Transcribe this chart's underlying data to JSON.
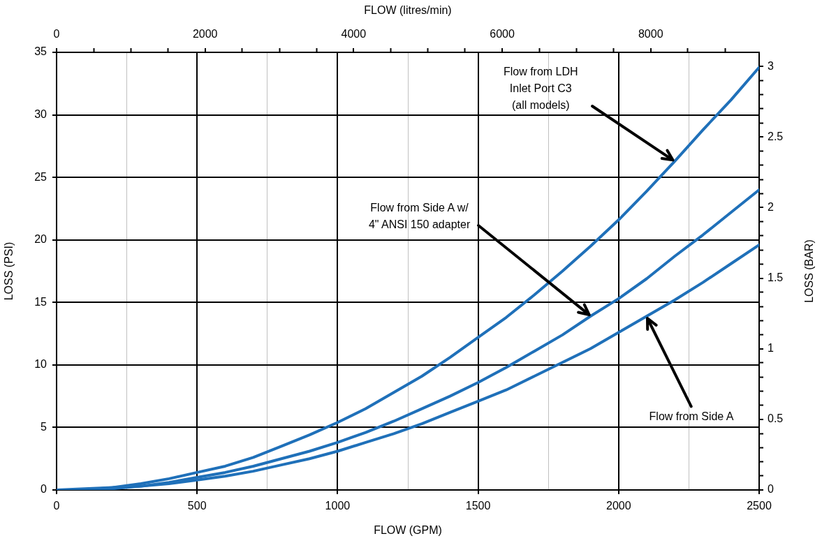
{
  "chart_data": {
    "type": "line",
    "xlabel": "FLOW (GPM)",
    "ylabel": "LOSS (PSI)",
    "y2label": "LOSS (BAR)",
    "x2label": "FLOW (litres/min)",
    "x": [
      0,
      100,
      200,
      300,
      400,
      500,
      600,
      700,
      800,
      900,
      1000,
      1100,
      1200,
      1300,
      1400,
      1500,
      1600,
      1700,
      1800,
      1900,
      2000,
      2100,
      2200,
      2300,
      2400,
      2500
    ],
    "series": [
      {
        "color": "#1f70b9",
        "values": [
          0,
          0.1,
          0.2,
          0.5,
          0.9,
          1.4,
          1.9,
          2.6,
          3.5,
          4.4,
          5.4,
          6.5,
          7.8,
          9.1,
          10.6,
          12.2,
          13.8,
          15.6,
          17.5,
          19.5,
          21.6,
          23.9,
          26.3,
          28.8,
          31.2,
          33.8
        ]
      },
      {
        "color": "#1f70b9",
        "values": [
          0,
          0.0,
          0.2,
          0.3,
          0.6,
          1.0,
          1.4,
          1.9,
          2.5,
          3.1,
          3.8,
          4.6,
          5.5,
          6.5,
          7.5,
          8.6,
          9.8,
          11.1,
          12.4,
          13.9,
          15.3,
          16.9,
          18.7,
          20.4,
          22.2,
          24.0
        ]
      },
      {
        "color": "#1f70b9",
        "values": [
          0,
          0.0,
          0.1,
          0.3,
          0.5,
          0.8,
          1.1,
          1.5,
          2.0,
          2.5,
          3.1,
          3.8,
          4.5,
          5.3,
          6.2,
          7.1,
          8.0,
          9.1,
          10.2,
          11.3,
          12.6,
          13.9,
          15.2,
          16.6,
          18.1,
          19.6
        ]
      }
    ],
    "xlim": [
      0,
      2500
    ],
    "xticks": [
      0,
      {
        "value": 250,
        "label": null
      },
      500,
      {
        "value": 750,
        "label": null
      },
      1000,
      {
        "value": 1250,
        "label": null
      },
      1500,
      {
        "value": 1750,
        "label": null
      },
      2000,
      {
        "value": 2250,
        "label": null
      },
      2500
    ],
    "ylim": [
      0,
      35
    ],
    "yticks": [
      0,
      5,
      10,
      15,
      20,
      25,
      30,
      35
    ],
    "x2lim": [
      0,
      9460
    ],
    "x2ticks": [
      0,
      {
        "value": 500,
        "label": null
      },
      {
        "value": 1000,
        "label": null
      },
      {
        "value": 1500,
        "label": null
      },
      2000,
      {
        "value": 2500,
        "label": null
      },
      {
        "value": 3000,
        "label": null
      },
      {
        "value": 3500,
        "label": null
      },
      4000,
      {
        "value": 4500,
        "label": null
      },
      {
        "value": 5000,
        "label": null
      },
      {
        "value": 5500,
        "label": null
      },
      6000,
      {
        "value": 6500,
        "label": null
      },
      {
        "value": 7000,
        "label": null
      },
      {
        "value": 7500,
        "label": null
      },
      8000,
      {
        "value": 8500,
        "label": null
      },
      {
        "value": 9000,
        "label": null
      }
    ],
    "y2lim": [
      0,
      3.1
    ],
    "y2ticks": [
      0,
      {
        "value": 0.1,
        "label": null
      },
      {
        "value": 0.2,
        "label": null
      },
      {
        "value": 0.3,
        "label": null
      },
      {
        "value": 0.4,
        "label": null
      },
      0.5,
      {
        "value": 0.6,
        "label": null
      },
      {
        "value": 0.7,
        "label": null
      },
      {
        "value": 0.8,
        "label": null
      },
      {
        "value": 0.9,
        "label": null
      },
      1,
      {
        "value": 1.1,
        "label": null
      },
      {
        "value": 1.2,
        "label": null
      },
      {
        "value": 1.3,
        "label": null
      },
      {
        "value": 1.4,
        "label": null
      },
      1.5,
      {
        "value": 1.6,
        "label": null
      },
      {
        "value": 1.7,
        "label": null
      },
      {
        "value": 1.8,
        "label": null
      },
      {
        "value": 1.9,
        "label": null
      },
      2,
      {
        "value": 2.1,
        "label": null
      },
      {
        "value": 2.2,
        "label": null
      },
      {
        "value": 2.3,
        "label": null
      },
      {
        "value": 2.4,
        "label": null
      },
      2.5,
      {
        "value": 2.6,
        "label": null
      },
      {
        "value": 2.7,
        "label": null
      },
      {
        "value": 2.8,
        "label": null
      },
      {
        "value": 2.9,
        "label": null
      },
      3
    ],
    "grid": true,
    "marker": "none",
    "line_style": "solid",
    "annotations": [
      {
        "text": "Flow from LDH\nInlet Port C3\n(all models)",
        "x": 2200,
        "y": 26.3
      },
      {
        "text": "Flow from Side A w/\n4\" ANSI 150 adapter",
        "x": 1900,
        "y": 13.9
      },
      {
        "text": "Flow from Side A",
        "x": 2100,
        "y": 13.9
      }
    ]
  }
}
